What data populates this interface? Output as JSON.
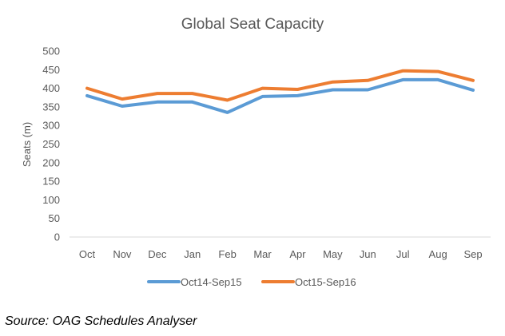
{
  "chart_data": {
    "type": "line",
    "title": "Global Seat Capacity",
    "xlabel": "",
    "ylabel": "Seats (m)",
    "ylim": [
      0,
      500
    ],
    "yticks": [
      "0",
      "50",
      "100",
      "150",
      "200",
      "250",
      "300",
      "350",
      "400",
      "450",
      "500"
    ],
    "categories": [
      "Oct",
      "Nov",
      "Dec",
      "Jan",
      "Feb",
      "Mar",
      "Apr",
      "May",
      "Jun",
      "Jul",
      "Aug",
      "Sep"
    ],
    "grid": false,
    "legend": "bottom",
    "series": [
      {
        "name": "Oct14-Sep15",
        "color": "#5B9BD5",
        "values": [
          380,
          352,
          363,
          363,
          335,
          378,
          380,
          396,
          396,
          423,
          423,
          395
        ]
      },
      {
        "name": "Oct15-Sep16",
        "color": "#ED7D31",
        "values": [
          400,
          371,
          386,
          386,
          368,
          400,
          397,
          417,
          421,
          447,
          445,
          421
        ]
      }
    ]
  },
  "source": "Source: OAG Schedules Analyser"
}
